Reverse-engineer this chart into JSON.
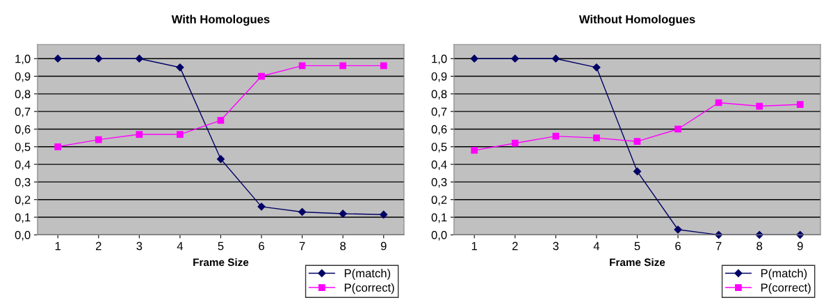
{
  "chart_data": [
    {
      "type": "line",
      "title": "With Homologues",
      "xlabel": "Frame Size",
      "categories": [
        "1",
        "2",
        "3",
        "4",
        "5",
        "6",
        "7",
        "8",
        "9"
      ],
      "series": [
        {
          "name": "P(match)",
          "color": "#000066",
          "marker": "diamond",
          "values": [
            1.0,
            1.0,
            1.0,
            0.95,
            0.43,
            0.16,
            0.13,
            0.12,
            0.115
          ]
        },
        {
          "name": "P(correct)",
          "color": "#ff00ff",
          "marker": "square",
          "values": [
            0.5,
            0.54,
            0.57,
            0.57,
            0.65,
            0.9,
            0.96,
            0.96,
            0.96
          ]
        }
      ],
      "ylim": [
        0,
        1.08
      ],
      "yticks": [
        {
          "value": 0,
          "label": "0,0"
        },
        {
          "value": 0.1,
          "label": "0,1"
        },
        {
          "value": 0.2,
          "label": "0,2"
        },
        {
          "value": 0.3,
          "label": "0,3"
        },
        {
          "value": 0.4,
          "label": "0,4"
        },
        {
          "value": 0.5,
          "label": "0,5"
        },
        {
          "value": 0.6,
          "label": "0,6"
        },
        {
          "value": 0.7,
          "label": "0,7"
        },
        {
          "value": 0.8,
          "label": "0,8"
        },
        {
          "value": 0.9,
          "label": "0,9"
        },
        {
          "value": 1.0,
          "label": "1,0"
        }
      ],
      "grid": "y",
      "legend": "bottom right",
      "line_style": "solid"
    },
    {
      "type": "line",
      "title": "Without Homologues",
      "xlabel": "Frame Size",
      "categories": [
        "1",
        "2",
        "3",
        "4",
        "5",
        "6",
        "7",
        "8",
        "9"
      ],
      "series": [
        {
          "name": "P(match)",
          "color": "#000066",
          "marker": "diamond",
          "values": [
            1.0,
            1.0,
            1.0,
            0.95,
            0.36,
            0.03,
            0.0,
            0.0,
            0.0
          ]
        },
        {
          "name": "P(correct)",
          "color": "#ff00ff",
          "marker": "square",
          "values": [
            0.48,
            0.52,
            0.56,
            0.55,
            0.53,
            0.6,
            0.75,
            0.73,
            0.74
          ]
        }
      ],
      "ylim": [
        0,
        1.08
      ],
      "yticks": [
        {
          "value": 0,
          "label": "0,0"
        },
        {
          "value": 0.1,
          "label": "0,1"
        },
        {
          "value": 0.2,
          "label": "0,2"
        },
        {
          "value": 0.3,
          "label": "0,3"
        },
        {
          "value": 0.4,
          "label": "0,4"
        },
        {
          "value": 0.5,
          "label": "0,5"
        },
        {
          "value": 0.6,
          "label": "0,6"
        },
        {
          "value": 0.7,
          "label": "0,7"
        },
        {
          "value": 0.8,
          "label": "0,8"
        },
        {
          "value": 0.9,
          "label": "0,9"
        },
        {
          "value": 1.0,
          "label": "1,0"
        }
      ],
      "grid": "y",
      "legend": "bottom right",
      "line_style": "solid"
    }
  ]
}
